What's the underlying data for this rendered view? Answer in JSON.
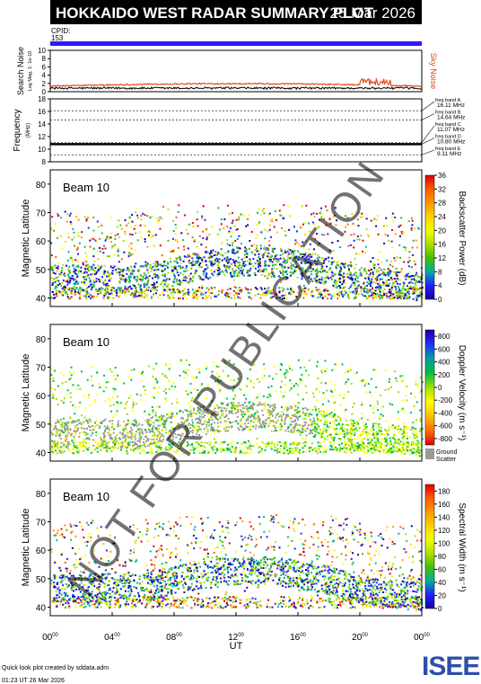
{
  "header": {
    "title": "HOKKAIDO WEST RADAR SUMMARY PLOT",
    "date": "25 Mar 2026",
    "cpid_label": "CPID:",
    "cpid_value": "153"
  },
  "noise_panel": {
    "ylabel": "Search Noise",
    "ylabel_sub": "Log Mag, 1: 1e-10",
    "right_label": "Sky Noise",
    "ticks": [
      "10",
      "8",
      "6",
      "4",
      "2",
      "0"
    ],
    "range": [
      0,
      10
    ],
    "colors": {
      "search": "#000000",
      "sky": "#e34a1a"
    }
  },
  "freq_panel": {
    "ylabel": "Frequency",
    "unit": "(MHz)",
    "ticks": [
      "18",
      "16",
      "14",
      "12",
      "10",
      "8"
    ],
    "range": [
      8,
      18
    ],
    "bands": [
      {
        "name": "freq band A",
        "value": "16.11 MHz",
        "freq": 16.11
      },
      {
        "name": "freq band B",
        "value": "14.64 MHz",
        "freq": 14.64
      },
      {
        "name": "freq band C",
        "value": "11.07 MHz",
        "freq": 11.07
      },
      {
        "name": "freq band D",
        "value": "10.80 MHz",
        "freq": 10.8
      },
      {
        "name": "freq band E",
        "value": "9.11 MHz",
        "freq": 9.11
      }
    ],
    "operating_freq": 10.8
  },
  "chart_data": [
    {
      "type": "heatmap",
      "beam_label": "Beam 10",
      "ylabel": "Magnetic Latitude",
      "yticks": [
        "80",
        "70",
        "60",
        "50",
        "40"
      ],
      "ylim": [
        37,
        85
      ],
      "colorbar_label": "Backscatter Power (dB)",
      "colorbar_ticks": [
        "36",
        "32",
        "28",
        "24",
        "20",
        "16",
        "12",
        "8",
        "4",
        "0"
      ],
      "colorbar_range": [
        0,
        36
      ],
      "ground_scatter": false
    },
    {
      "type": "heatmap",
      "beam_label": "Beam 10",
      "ylabel": "Magnetic Latitude",
      "yticks": [
        "80",
        "70",
        "60",
        "50",
        "40"
      ],
      "ylim": [
        37,
        85
      ],
      "colorbar_label": "Doppler Velocity (m s⁻¹)",
      "colorbar_ticks": [
        "800",
        "600",
        "400",
        "200",
        "0",
        "-200",
        "-400",
        "-600",
        "-800"
      ],
      "colorbar_range": [
        -900,
        900
      ],
      "ground_scatter": true,
      "ground_label_1": "Ground",
      "ground_label_2": "Scatter"
    },
    {
      "type": "heatmap",
      "beam_label": "Beam 10",
      "ylabel": "Magnetic Latitude",
      "yticks": [
        "80",
        "70",
        "60",
        "50",
        "40"
      ],
      "ylim": [
        37,
        85
      ],
      "colorbar_label": "Spectral Width (m s⁻¹)",
      "colorbar_ticks": [
        "180",
        "160",
        "140",
        "120",
        "100",
        "80",
        "60",
        "40",
        "20",
        "0"
      ],
      "colorbar_range": [
        0,
        190
      ],
      "ground_scatter": false
    }
  ],
  "xaxis": {
    "label": "UT",
    "ticks": [
      {
        "h": "00",
        "m": "00"
      },
      {
        "h": "04",
        "m": "00"
      },
      {
        "h": "08",
        "m": "00"
      },
      {
        "h": "12",
        "m": "00"
      },
      {
        "h": "16",
        "m": "00"
      },
      {
        "h": "20",
        "m": "00"
      },
      {
        "h": "00",
        "m": "00"
      }
    ],
    "range_hours": [
      0,
      24
    ]
  },
  "footer": {
    "credit": "Quick look plot created by sddata.adm",
    "timestamp": "01:23 UT 26 Mar 2026",
    "logo_text": "ISEE"
  },
  "watermark": "NOT FOR PUBLICATION",
  "colors": {
    "cpid_bar": "#2b1bff",
    "ground_scatter": "#999999",
    "scale_power": [
      "#e00000",
      "#ff5a00",
      "#ff9a00",
      "#ffd200",
      "#f0ff00",
      "#b0e000",
      "#40c000",
      "#00b0a0",
      "#2020ff",
      "#1a00a0"
    ],
    "scale_velocity": [
      "#1a00a0",
      "#2030ff",
      "#00a0a0",
      "#00c040",
      "#a0e000",
      "#ffff00",
      "#ffc000",
      "#ff7000",
      "#e00000"
    ],
    "logo_blue": "#2d4fa8",
    "logo_green": "#2c9a3c"
  }
}
